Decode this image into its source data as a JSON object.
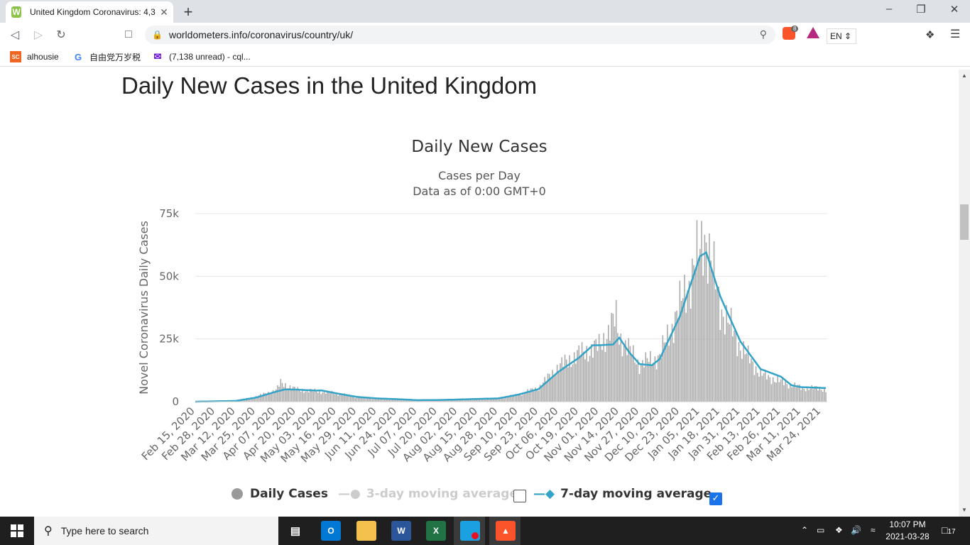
{
  "browser": {
    "tab_title": "United Kingdom Coronavirus: 4,3",
    "tab_close": "✕",
    "new_tab": "+",
    "url": "worldometers.info/coronavirus/country/uk/",
    "shields_badge": "8",
    "language": "EN",
    "bookmarks": [
      {
        "icon": "SC",
        "label": "alhousie",
        "color": "#f26522"
      },
      {
        "icon": "G",
        "label": "自由党万岁税",
        "color": "#4285f4"
      },
      {
        "icon": "✉",
        "label": "(7,138 unread) - cql...",
        "color": "#6001d2"
      }
    ]
  },
  "page": {
    "heading": "Daily New Cases in the United Kingdom"
  },
  "chart_data": {
    "type": "bar",
    "title": "Daily New Cases",
    "subtitle_lines": [
      "Cases per Day",
      "Data as of 0:00 GMT+0"
    ],
    "ylabel": "Novel Coronavirus Daily Cases",
    "xlabel": "",
    "ylim": [
      0,
      75000
    ],
    "yticks": [
      "0",
      "25k",
      "50k",
      "75k"
    ],
    "grid": true,
    "x_start": "2020-02-15",
    "x_end": "2021-03-27",
    "x_tick_labels": [
      "Feb 15, 2020",
      "Feb 28, 2020",
      "Mar 12, 2020",
      "Mar 25, 2020",
      "Apr 07, 2020",
      "Apr 20, 2020",
      "May 03, 2020",
      "May 16, 2020",
      "May 29, 2020",
      "Jun 11, 2020",
      "Jun 24, 2020",
      "Jul 07, 2020",
      "Jul 20, 2020",
      "Aug 02, 2020",
      "Aug 15, 2020",
      "Aug 28, 2020",
      "Sep 10, 2020",
      "Sep 23, 2020",
      "Oct 06, 2020",
      "Oct 19, 2020",
      "Nov 01, 2020",
      "Nov 14, 2020",
      "Nov 27, 2020",
      "Dec 10, 2020",
      "Dec 23, 2020",
      "Jan 05, 2021",
      "Jan 18, 2021",
      "Jan 31, 2021",
      "Feb 13, 2021",
      "Feb 26, 2021",
      "Mar 11, 2021",
      "Mar 24, 2021"
    ],
    "series": [
      {
        "name": "Daily Cases",
        "kind": "bar",
        "color": "#aaaaaa",
        "anchors": [
          [
            "2020-02-15",
            0
          ],
          [
            "2020-03-12",
            400
          ],
          [
            "2020-03-25",
            2000
          ],
          [
            "2020-04-07",
            4500
          ],
          [
            "2020-04-10",
            7500
          ],
          [
            "2020-04-20",
            4800
          ],
          [
            "2020-05-03",
            4200
          ],
          [
            "2020-05-16",
            3300
          ],
          [
            "2020-05-29",
            1800
          ],
          [
            "2020-06-11",
            1300
          ],
          [
            "2020-06-24",
            900
          ],
          [
            "2020-07-07",
            600
          ],
          [
            "2020-07-20",
            650
          ],
          [
            "2020-08-02",
            800
          ],
          [
            "2020-08-15",
            1100
          ],
          [
            "2020-08-28",
            1300
          ],
          [
            "2020-09-10",
            2800
          ],
          [
            "2020-09-23",
            5500
          ],
          [
            "2020-10-06",
            14000
          ],
          [
            "2020-10-19",
            19000
          ],
          [
            "2020-11-01",
            22000
          ],
          [
            "2020-11-12",
            33000
          ],
          [
            "2020-11-14",
            26000
          ],
          [
            "2020-11-27",
            15000
          ],
          [
            "2020-12-10",
            18000
          ],
          [
            "2020-12-23",
            38000
          ],
          [
            "2021-01-05",
            60000
          ],
          [
            "2021-01-08",
            68000
          ],
          [
            "2021-01-18",
            38000
          ],
          [
            "2021-01-31",
            22000
          ],
          [
            "2021-02-13",
            11000
          ],
          [
            "2021-02-26",
            8000
          ],
          [
            "2021-03-11",
            5500
          ],
          [
            "2021-03-24",
            5300
          ],
          [
            "2021-03-27",
            4500
          ]
        ]
      },
      {
        "name": "3-day moving average",
        "kind": "line",
        "enabled": false,
        "color": "#cccccc"
      },
      {
        "name": "7-day moving average",
        "kind": "line",
        "enabled": true,
        "color": "#33a3c7",
        "anchors": [
          [
            "2020-02-15",
            0
          ],
          [
            "2020-03-12",
            300
          ],
          [
            "2020-03-25",
            1600
          ],
          [
            "2020-04-07",
            4000
          ],
          [
            "2020-04-13",
            4900
          ],
          [
            "2020-04-20",
            4800
          ],
          [
            "2020-05-03",
            4400
          ],
          [
            "2020-05-06",
            4500
          ],
          [
            "2020-05-16",
            3300
          ],
          [
            "2020-05-29",
            1900
          ],
          [
            "2020-06-11",
            1300
          ],
          [
            "2020-06-24",
            1000
          ],
          [
            "2020-07-07",
            600
          ],
          [
            "2020-07-20",
            650
          ],
          [
            "2020-08-02",
            850
          ],
          [
            "2020-08-15",
            1100
          ],
          [
            "2020-08-28",
            1300
          ],
          [
            "2020-09-10",
            2800
          ],
          [
            "2020-09-23",
            5000
          ],
          [
            "2020-10-06",
            12000
          ],
          [
            "2020-10-19",
            17500
          ],
          [
            "2020-10-28",
            22500
          ],
          [
            "2020-11-01",
            22500
          ],
          [
            "2020-11-10",
            22800
          ],
          [
            "2020-11-14",
            25500
          ],
          [
            "2020-11-20",
            20000
          ],
          [
            "2020-11-27",
            15000
          ],
          [
            "2020-12-05",
            14500
          ],
          [
            "2020-12-10",
            17000
          ],
          [
            "2020-12-23",
            34000
          ],
          [
            "2021-01-05",
            58000
          ],
          [
            "2021-01-09",
            59500
          ],
          [
            "2021-01-18",
            42000
          ],
          [
            "2021-01-31",
            24000
          ],
          [
            "2021-02-13",
            13000
          ],
          [
            "2021-02-26",
            10000
          ],
          [
            "2021-03-05",
            6500
          ],
          [
            "2021-03-11",
            5800
          ],
          [
            "2021-03-24",
            5500
          ],
          [
            "2021-03-27",
            5400
          ]
        ]
      }
    ],
    "legend_position": "bottom"
  },
  "legend": {
    "daily": "Daily Cases",
    "ma3": "3-day moving average",
    "ma7": "7-day moving average",
    "ma3_checked": false,
    "ma7_checked": true
  },
  "taskbar": {
    "search_placeholder": "Type here to search",
    "time": "10:07 PM",
    "date": "2021-03-28",
    "notification_count": "17"
  }
}
